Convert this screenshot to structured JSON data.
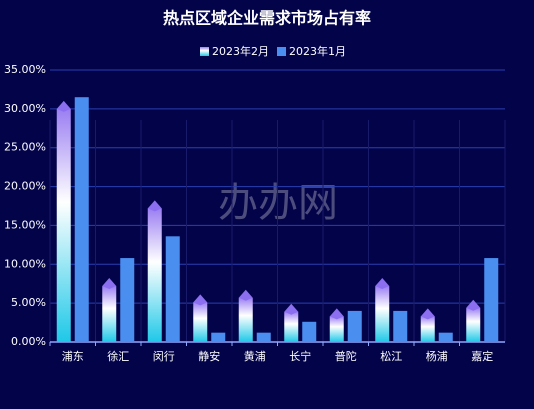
{
  "chart_data": {
    "type": "bar",
    "title": "热点区域企业需求市场占有率",
    "watermark": "办办网",
    "categories": [
      "浦东",
      "徐汇",
      "闵行",
      "静安",
      "黄浦",
      "长宁",
      "普陀",
      "松江",
      "杨浦",
      "嘉定"
    ],
    "series": [
      {
        "name": "2023年2月",
        "color": "#29c6e8",
        "values": [
          30.0,
          7.2,
          17.2,
          5.1,
          5.7,
          3.9,
          3.3,
          7.2,
          3.3,
          4.4
        ]
      },
      {
        "name": "2023年1月",
        "color": "#4a8ff0",
        "values": [
          31.5,
          10.8,
          13.6,
          1.2,
          1.2,
          2.6,
          4.0,
          4.0,
          1.2,
          10.8
        ]
      }
    ],
    "ylim": [
      0,
      35
    ],
    "yticks": [
      {
        "value": 0,
        "label": "0.00%"
      },
      {
        "value": 5,
        "label": "5.00%"
      },
      {
        "value": 10,
        "label": "10.00%"
      },
      {
        "value": 15,
        "label": "15.00%"
      },
      {
        "value": 20,
        "label": "20.00%"
      },
      {
        "value": 25,
        "label": "25.00%"
      },
      {
        "value": 30,
        "label": "30.00%"
      },
      {
        "value": 35,
        "label": "35.00%"
      }
    ],
    "grid": true
  }
}
